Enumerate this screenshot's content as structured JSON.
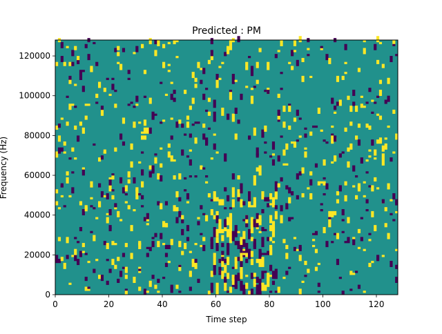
{
  "chart_data": {
    "type": "heatmap",
    "title": "Predicted : PM",
    "xlabel": "Time step",
    "ylabel": "Frequency (Hz)",
    "xlim": [
      0,
      128
    ],
    "ylim": [
      0,
      128000
    ],
    "x_ticks": [
      0,
      20,
      40,
      60,
      80,
      100,
      120
    ],
    "y_ticks": [
      0,
      20000,
      40000,
      60000,
      80000,
      100000,
      120000
    ],
    "n_time_steps": 128,
    "n_freq_bins": 128,
    "value_range": [
      -1,
      1
    ],
    "legend": "none",
    "colors": {
      "background": "#21918c",
      "high": "#fde725",
      "low": "#440154"
    },
    "description": "Sparse binary spectrogram mask: most cells are the middle value (teal); scattered short vertical segments of high (yellow) and low (purple) values, densest around time steps 60-80 at frequencies below 50000 Hz."
  }
}
